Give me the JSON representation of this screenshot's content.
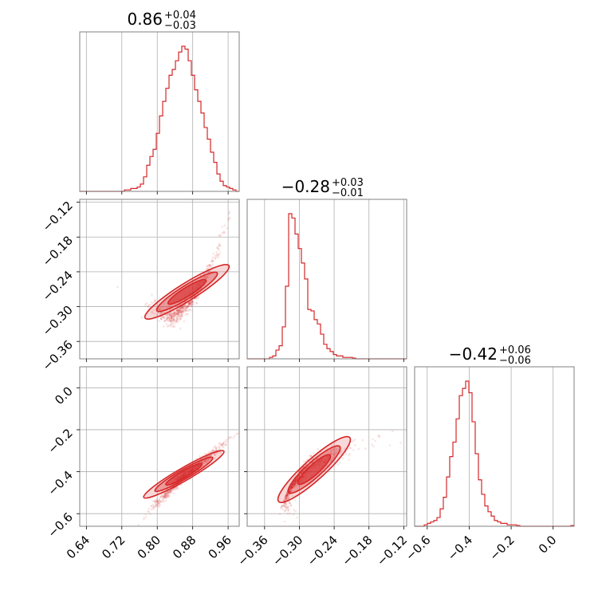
{
  "colors": {
    "series": "#d62728",
    "grid": "#b0b0b0",
    "frame": "#808080"
  },
  "chart_data": {
    "type": "corner",
    "parameters": [
      {
        "title_main": "0.86",
        "title_plus": "+0.04",
        "title_minus": "−0.03",
        "range": [
          0.625,
          0.985
        ],
        "ticks": [
          0.64,
          0.72,
          0.8,
          0.88,
          0.96
        ],
        "tick_labels": [
          "0.64",
          "0.72",
          "0.80",
          "0.88",
          "0.96"
        ],
        "hist": [
          0,
          0,
          0,
          0,
          0,
          0,
          0,
          0,
          0,
          0,
          0,
          0,
          0,
          0,
          0.01,
          0.01,
          0.02,
          0.02,
          0.03,
          0.05,
          0.1,
          0.18,
          0.24,
          0.29,
          0.4,
          0.52,
          0.62,
          0.71,
          0.8,
          0.84,
          0.9,
          0.96,
          1.0,
          0.98,
          0.9,
          0.8,
          0.7,
          0.62,
          0.54,
          0.44,
          0.36,
          0.27,
          0.2,
          0.12,
          0.07,
          0.04,
          0.03,
          0.02,
          0.01,
          0
        ]
      },
      {
        "title_main": "−0.28",
        "title_plus": "+0.03",
        "title_minus": "−0.01",
        "range": [
          -0.39,
          -0.115
        ],
        "ticks": [
          -0.36,
          -0.3,
          -0.24,
          -0.18,
          -0.12
        ],
        "tick_labels": [
          "−0.36",
          "−0.30",
          "−0.24",
          "−0.18",
          "−0.12"
        ],
        "hist": [
          0,
          0,
          0,
          0,
          0,
          0,
          0,
          0.01,
          0.02,
          0.06,
          0.09,
          0.22,
          0.5,
          1.0,
          0.97,
          0.86,
          0.76,
          0.66,
          0.55,
          0.34,
          0.33,
          0.27,
          0.24,
          0.17,
          0.1,
          0.07,
          0.05,
          0.03,
          0.02,
          0.02,
          0.01,
          0.01,
          0.01,
          0.005,
          0,
          0,
          0,
          0,
          0,
          0,
          0,
          0,
          0,
          0,
          0,
          0,
          0,
          0,
          0,
          0
        ]
      },
      {
        "title_main": "−0.42",
        "title_plus": "+0.06",
        "title_minus": "−0.06",
        "range": [
          -0.66,
          0.1
        ],
        "ticks": [
          -0.6,
          -0.4,
          -0.2,
          0.0
        ],
        "tick_labels": [
          "−0.6",
          "−0.4",
          "−0.2",
          "0.0"
        ],
        "hist": [
          0,
          0,
          0,
          0.01,
          0.02,
          0.03,
          0.04,
          0.06,
          0.12,
          0.2,
          0.34,
          0.48,
          0.58,
          0.74,
          0.9,
          0.95,
          1.0,
          0.92,
          0.72,
          0.5,
          0.32,
          0.22,
          0.14,
          0.1,
          0.07,
          0.04,
          0.03,
          0.02,
          0.02,
          0.01,
          0.01,
          0.01,
          0.005,
          0,
          0,
          0,
          0,
          0,
          0,
          0,
          0,
          0,
          0,
          0,
          0,
          0,
          0,
          0,
          0,
          0.005
        ]
      }
    ],
    "y_axis_ticks": {
      "row1": {
        "ticks": [
          -0.12,
          -0.18,
          -0.24,
          -0.3,
          -0.36
        ],
        "tick_labels": [
          "−0.12",
          "−0.18",
          "−0.24",
          "−0.30",
          "−0.36"
        ]
      },
      "row2": {
        "ticks": [
          0.0,
          -0.2,
          -0.4,
          -0.6
        ],
        "tick_labels": [
          "0.0",
          "−0.2",
          "−0.4",
          "−0.6"
        ]
      }
    },
    "scatter_panels": [
      {
        "x_param": 0,
        "y_param": 1,
        "center": [
          0.86,
          -0.28
        ],
        "relation": "curved positive correlation"
      },
      {
        "x_param": 0,
        "y_param": 2,
        "center": [
          0.86,
          -0.42
        ],
        "relation": "tight linear positive correlation"
      },
      {
        "x_param": 1,
        "y_param": 2,
        "center": [
          -0.28,
          -0.42
        ],
        "relation": "curved positive correlation"
      }
    ],
    "grid": true
  }
}
